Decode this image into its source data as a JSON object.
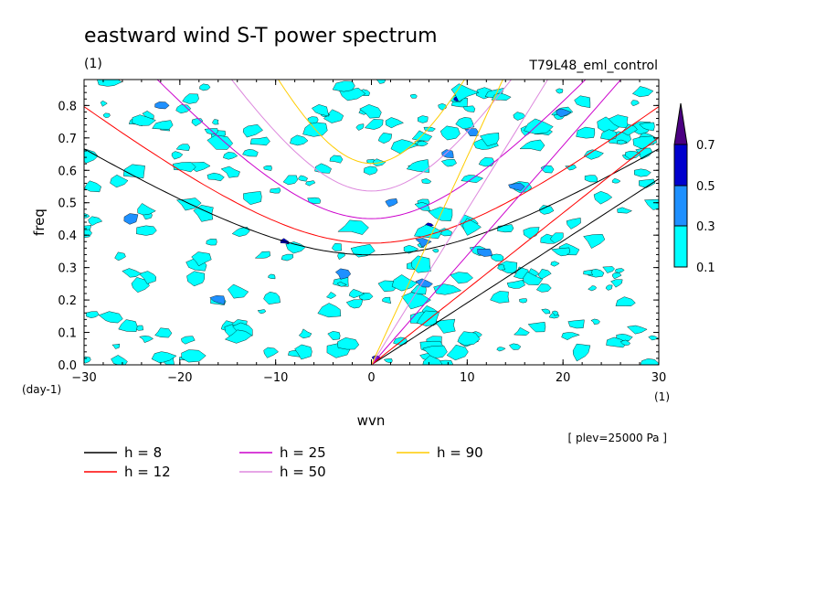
{
  "chart_data": {
    "type": "contour",
    "title": "eastward wind S-T power spectrum",
    "units_label": "(1)",
    "run_name": "T79L48_eml_control",
    "xlabel": "wvn",
    "ylabel": "freq",
    "x_unit_label": "(1)",
    "y_unit_label": "(day-1)",
    "note": "[ plev=25000 Pa ]",
    "xlim": [
      -30,
      30
    ],
    "ylim": [
      0,
      0.88
    ],
    "xticks": [
      -30,
      -20,
      -10,
      0,
      10,
      20,
      30
    ],
    "yticks": [
      0.0,
      0.1,
      0.2,
      0.3,
      0.4,
      0.5,
      0.6,
      0.7,
      0.8
    ],
    "ytick_labels": [
      "0.0",
      "0.1",
      "0.2",
      "0.3",
      "0.4",
      "0.5",
      "0.6",
      "0.7",
      "0.8"
    ],
    "contour_levels": [
      0.1,
      0.3,
      0.5,
      0.7
    ],
    "colorbar_labels": [
      "0.1",
      "0.3",
      "0.5",
      "0.7"
    ],
    "colors": {
      "c1": "#00ffff",
      "c2": "#1e90ff",
      "c3": "#0000cd",
      "c4": "#4b0082"
    },
    "dispersion_curves": [
      {
        "label": "h = 8",
        "h": 8,
        "color": "#000000"
      },
      {
        "label": "h = 12",
        "h": 12,
        "color": "#ff0000"
      },
      {
        "label": "h = 25",
        "h": 25,
        "color": "#cc00cc"
      },
      {
        "label": "h = 50",
        "h": 50,
        "color": "#dd88dd"
      },
      {
        "label": "h = 90",
        "h": 90,
        "color": "#ffcc00"
      }
    ],
    "spectral_patches": [
      {
        "k": 9.0,
        "f": 0.82,
        "level": 3
      },
      {
        "k": 7.5,
        "f": 0.47,
        "level": 3
      },
      {
        "k": 6.0,
        "f": 0.43,
        "level": 3
      },
      {
        "k": 5.0,
        "f": 0.32,
        "level": 3
      },
      {
        "k": 4.0,
        "f": 0.21,
        "level": 3
      },
      {
        "k": 6.0,
        "f": 0.15,
        "level": 3
      },
      {
        "k": 0.5,
        "f": 0.02,
        "level": 3
      },
      {
        "k": -9.0,
        "f": 0.38,
        "level": 3
      },
      {
        "k": 10.5,
        "f": 0.72,
        "level": 2
      },
      {
        "k": -22.0,
        "f": 0.8,
        "level": 2
      },
      {
        "k": 8.0,
        "f": 0.65,
        "level": 2
      },
      {
        "k": 2.0,
        "f": 0.5,
        "level": 2
      },
      {
        "k": 5.5,
        "f": 0.38,
        "level": 2
      },
      {
        "k": 5.5,
        "f": 0.25,
        "level": 2
      },
      {
        "k": 12.0,
        "f": 0.35,
        "level": 2
      },
      {
        "k": -3.0,
        "f": 0.28,
        "level": 2
      },
      {
        "k": 15.0,
        "f": 0.55,
        "level": 2
      },
      {
        "k": -25.0,
        "f": 0.45,
        "level": 2
      },
      {
        "k": 20.0,
        "f": 0.78,
        "level": 2
      },
      {
        "k": -16.0,
        "f": 0.2,
        "level": 2
      },
      {
        "k": 9.5,
        "f": 0.84,
        "level": 1
      },
      {
        "k": 7.5,
        "f": 0.46,
        "level": 1
      },
      {
        "k": 6.0,
        "f": 0.41,
        "level": 1
      },
      {
        "k": 4.5,
        "f": 0.2,
        "level": 1
      },
      {
        "k": 6.0,
        "f": 0.14,
        "level": 1
      },
      {
        "k": 5.2,
        "f": 0.31,
        "level": 1
      }
    ]
  }
}
